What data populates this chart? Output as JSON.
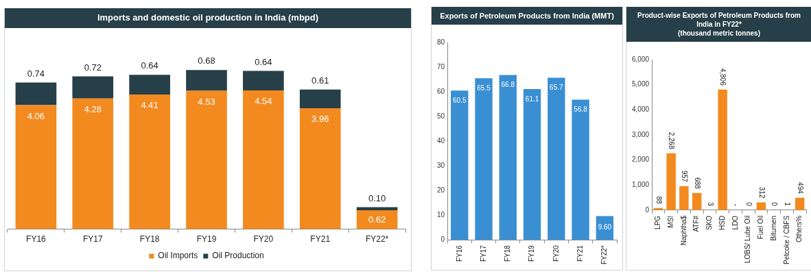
{
  "chart_data": [
    {
      "type": "bar",
      "title": "Imports and domestic oil production in India (mbpd)",
      "categories": [
        "FY16",
        "FY17",
        "FY18",
        "FY19",
        "FY20",
        "FY21",
        "FY22*"
      ],
      "stacked": true,
      "legend": "bottom",
      "tick_labels": "x",
      "series": [
        {
          "name": "Oil Imports",
          "color": "#f28a20",
          "values": [
            4.06,
            4.28,
            4.41,
            4.53,
            4.54,
            3.96,
            0.62
          ],
          "value_labels": [
            "4.06",
            "4.28",
            "4.41",
            "4.53",
            "4.54",
            "3.96",
            "0.62"
          ]
        },
        {
          "name": "Oil Production",
          "color": "#263f48",
          "values": [
            0.74,
            0.72,
            0.64,
            0.68,
            0.64,
            0.61,
            0.1
          ],
          "value_labels": [
            "0.74",
            "0.72",
            "0.64",
            "0.68",
            "0.64",
            "0.61",
            "0.10"
          ]
        }
      ]
    },
    {
      "type": "bar",
      "title": "Exports of Petroleum Products from India (MMT)",
      "categories": [
        "FY16",
        "FY17",
        "FY18",
        "FY19",
        "FY20",
        "FY21",
        "FY22*"
      ],
      "ylim": [
        0,
        80
      ],
      "yticks": [
        0,
        10,
        20,
        30,
        40,
        50,
        60,
        70,
        80
      ],
      "series": [
        {
          "color": "#3a8fd2",
          "values": [
            60.5,
            65.5,
            66.8,
            61.1,
            65.7,
            56.8,
            9.6
          ],
          "value_labels": [
            "60.5",
            "65.5",
            "66.8",
            "61.1",
            "65.7",
            "56.8",
            "9.60"
          ]
        }
      ]
    },
    {
      "type": "bar",
      "title": "Product-wise Exports of Petroleum Products from India in FY22*",
      "subtitle": "(thousand metric tonnes)",
      "categories": [
        "LPG",
        "MS!",
        "Naphtha$",
        "ATF#",
        "SKO",
        "HSD",
        "LDO",
        "LOBS/ Lube Oil",
        "Fuel Oil",
        "Bitumen",
        "Petcoke / CBFS",
        "Others%"
      ],
      "ylim": [
        0,
        6000
      ],
      "yticks": [
        0,
        {
          "value": 1000,
          "label": "1,000"
        },
        {
          "value": 2000,
          "label": "2,000"
        },
        {
          "value": 3000,
          "label": "3,000"
        },
        {
          "value": 4000,
          "label": "4,000"
        },
        {
          "value": 5000,
          "label": "5,000"
        },
        {
          "value": 6000,
          "label": "6,000"
        }
      ],
      "series": [
        {
          "color": "#f28a20",
          "values": [
            88,
            2268,
            957,
            688,
            3,
            4806,
            null,
            0,
            312,
            0,
            1,
            494
          ],
          "value_labels": [
            "88",
            "2,268",
            "957",
            "688",
            "3",
            "4,806",
            "-",
            "0",
            "312",
            "0",
            "1",
            "494"
          ]
        }
      ]
    }
  ]
}
